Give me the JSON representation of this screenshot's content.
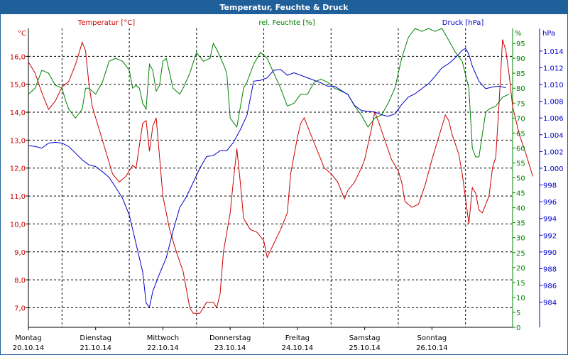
{
  "window": {
    "title": "Temperatur, Feuchte & Druck"
  },
  "chart_data": {
    "type": "line",
    "title": "Temperatur, Feuchte & Druck",
    "x_labels": [
      {
        "day": "Montag",
        "date": "20.10.14"
      },
      {
        "day": "Dienstag",
        "date": "21.10.14"
      },
      {
        "day": "Mittwoch",
        "date": "22.10.14"
      },
      {
        "day": "Donnerstag",
        "date": "23.10.14"
      },
      {
        "day": "Freitag",
        "date": "24.10.14"
      },
      {
        "day": "Samstag",
        "date": "25.10.14"
      },
      {
        "day": "Sonntag",
        "date": "26.10.14"
      }
    ],
    "xlim": [
      0,
      7.2
    ],
    "grid": true,
    "axes": {
      "temperature": {
        "label": "Temperatur [°C]",
        "unit": "°C",
        "color": "#cc0000",
        "ylim": [
          6.3,
          17.0
        ],
        "ticks": [
          "16,0",
          "15,0",
          "14,0",
          "13,0",
          "12,0",
          "11,0",
          "10,0",
          "9,0",
          "8,0",
          "7,0"
        ],
        "tick_values": [
          16,
          15,
          14,
          13,
          12,
          11,
          10,
          9,
          8,
          7
        ]
      },
      "humidity": {
        "label": "rel. Feuchte [%]",
        "unit": "%",
        "color": "#008000",
        "ylim": [
          0,
          100
        ],
        "ticks": [
          "95",
          "90",
          "85",
          "80",
          "75",
          "70",
          "65",
          "60",
          "55",
          "50",
          "45",
          "40",
          "35",
          "30",
          "25",
          "20",
          "15",
          "10",
          "5",
          "0"
        ],
        "tick_values": [
          95,
          90,
          85,
          80,
          75,
          70,
          65,
          60,
          55,
          50,
          45,
          40,
          35,
          30,
          25,
          20,
          15,
          10,
          5,
          0
        ]
      },
      "pressure": {
        "label": "Druck [hPa]",
        "unit": "hPa",
        "color": "#0000cc",
        "ylim": [
          981.0,
          1016.7
        ],
        "ticks": [
          "1.014",
          "1.012",
          "1.010",
          "1.008",
          "1.006",
          "1.004",
          "1.002",
          "1.000",
          "998",
          "996",
          "994",
          "992",
          "990",
          "988",
          "986",
          "984"
        ],
        "tick_values": [
          1014,
          1012,
          1010,
          1008,
          1006,
          1004,
          1002,
          1000,
          998,
          996,
          994,
          992,
          990,
          988,
          986,
          984
        ]
      }
    },
    "series": [
      {
        "name": "Temperatur [°C]",
        "axis": "temperature",
        "color": "#cc0000",
        "points": [
          [
            0,
            15.8
          ],
          [
            0.1,
            15.4
          ],
          [
            0.2,
            14.7
          ],
          [
            0.3,
            14.1
          ],
          [
            0.4,
            14.4
          ],
          [
            0.5,
            14.9
          ],
          [
            0.6,
            15.1
          ],
          [
            0.7,
            15.7
          ],
          [
            0.8,
            16.5
          ],
          [
            0.85,
            16.2
          ],
          [
            0.9,
            15.0
          ],
          [
            0.95,
            14.2
          ],
          [
            1.0,
            13.8
          ],
          [
            1.1,
            13.0
          ],
          [
            1.2,
            12.2
          ],
          [
            1.25,
            11.8
          ],
          [
            1.35,
            11.5
          ],
          [
            1.45,
            11.7
          ],
          [
            1.55,
            12.1
          ],
          [
            1.6,
            12.0
          ],
          [
            1.7,
            13.6
          ],
          [
            1.75,
            13.7
          ],
          [
            1.8,
            12.6
          ],
          [
            1.85,
            13.5
          ],
          [
            1.9,
            13.8
          ],
          [
            1.95,
            12.4
          ],
          [
            2.0,
            11.0
          ],
          [
            2.1,
            9.8
          ],
          [
            2.2,
            9.0
          ],
          [
            2.3,
            8.3
          ],
          [
            2.4,
            7.0
          ],
          [
            2.45,
            6.8
          ],
          [
            2.55,
            6.8
          ],
          [
            2.65,
            7.2
          ],
          [
            2.75,
            7.2
          ],
          [
            2.8,
            7.0
          ],
          [
            2.85,
            7.5
          ],
          [
            2.9,
            9.0
          ],
          [
            3.0,
            10.4
          ],
          [
            3.05,
            11.6
          ],
          [
            3.1,
            12.7
          ],
          [
            3.15,
            11.5
          ],
          [
            3.2,
            10.2
          ],
          [
            3.3,
            9.8
          ],
          [
            3.4,
            9.7
          ],
          [
            3.5,
            9.4
          ],
          [
            3.55,
            8.8
          ],
          [
            3.65,
            9.3
          ],
          [
            3.75,
            9.8
          ],
          [
            3.85,
            10.4
          ],
          [
            3.9,
            11.8
          ],
          [
            4.0,
            13.1
          ],
          [
            4.05,
            13.6
          ],
          [
            4.1,
            13.8
          ],
          [
            4.2,
            13.2
          ],
          [
            4.3,
            12.6
          ],
          [
            4.4,
            12.0
          ],
          [
            4.5,
            11.8
          ],
          [
            4.6,
            11.5
          ],
          [
            4.7,
            10.9
          ],
          [
            4.75,
            11.2
          ],
          [
            4.85,
            11.5
          ],
          [
            4.95,
            12.0
          ],
          [
            5.0,
            12.3
          ],
          [
            5.1,
            13.4
          ],
          [
            5.15,
            14.0
          ],
          [
            5.2,
            13.7
          ],
          [
            5.3,
            13.0
          ],
          [
            5.4,
            12.3
          ],
          [
            5.5,
            11.9
          ],
          [
            5.55,
            11.5
          ],
          [
            5.6,
            10.8
          ],
          [
            5.7,
            10.6
          ],
          [
            5.8,
            10.7
          ],
          [
            5.9,
            11.4
          ],
          [
            6.0,
            12.3
          ],
          [
            6.1,
            13.1
          ],
          [
            6.2,
            13.9
          ],
          [
            6.25,
            13.7
          ],
          [
            6.3,
            13.2
          ],
          [
            6.4,
            12.5
          ],
          [
            6.45,
            11.8
          ],
          [
            6.5,
            10.9
          ],
          [
            6.55,
            10.0
          ],
          [
            6.6,
            11.3
          ],
          [
            6.65,
            11.1
          ],
          [
            6.7,
            10.5
          ],
          [
            6.75,
            10.4
          ],
          [
            6.85,
            11.0
          ],
          [
            6.9,
            12.0
          ],
          [
            6.95,
            12.4
          ],
          [
            7.0,
            14.4
          ],
          [
            7.05,
            16.6
          ],
          [
            7.1,
            16.2
          ],
          [
            7.15,
            15.3
          ],
          [
            7.2,
            14.2
          ],
          [
            7.3,
            13.2
          ],
          [
            7.4,
            12.5
          ],
          [
            7.5,
            11.7
          ]
        ]
      },
      {
        "name": "rel. Feuchte [%]",
        "axis": "humidity",
        "color": "#008000",
        "points": [
          [
            0,
            78
          ],
          [
            0.1,
            80
          ],
          [
            0.2,
            86
          ],
          [
            0.3,
            85
          ],
          [
            0.4,
            81
          ],
          [
            0.5,
            80
          ],
          [
            0.55,
            76
          ],
          [
            0.6,
            73
          ],
          [
            0.7,
            70
          ],
          [
            0.8,
            73
          ],
          [
            0.85,
            80
          ],
          [
            0.9,
            80
          ],
          [
            1.0,
            78
          ],
          [
            1.1,
            82
          ],
          [
            1.2,
            89
          ],
          [
            1.3,
            90
          ],
          [
            1.4,
            89
          ],
          [
            1.5,
            86
          ],
          [
            1.55,
            80
          ],
          [
            1.6,
            81
          ],
          [
            1.65,
            80
          ],
          [
            1.7,
            75
          ],
          [
            1.75,
            73
          ],
          [
            1.8,
            88
          ],
          [
            1.85,
            86
          ],
          [
            1.9,
            79
          ],
          [
            1.95,
            81
          ],
          [
            2.0,
            89
          ],
          [
            2.05,
            90
          ],
          [
            2.15,
            80
          ],
          [
            2.25,
            78
          ],
          [
            2.3,
            80
          ],
          [
            2.4,
            85
          ],
          [
            2.5,
            92
          ],
          [
            2.6,
            89
          ],
          [
            2.7,
            90
          ],
          [
            2.75,
            95
          ],
          [
            2.8,
            93
          ],
          [
            2.9,
            88
          ],
          [
            2.95,
            85
          ],
          [
            3.0,
            70
          ],
          [
            3.1,
            67
          ],
          [
            3.2,
            80
          ],
          [
            3.25,
            82
          ],
          [
            3.35,
            88
          ],
          [
            3.45,
            92
          ],
          [
            3.55,
            90
          ],
          [
            3.65,
            85
          ],
          [
            3.75,
            80
          ],
          [
            3.85,
            74
          ],
          [
            3.95,
            75
          ],
          [
            4.05,
            78
          ],
          [
            4.15,
            78
          ],
          [
            4.25,
            82
          ],
          [
            4.35,
            83
          ],
          [
            4.45,
            82
          ],
          [
            4.55,
            80
          ],
          [
            4.65,
            79
          ],
          [
            4.75,
            78
          ],
          [
            4.85,
            74
          ],
          [
            4.95,
            71
          ],
          [
            5.05,
            67
          ],
          [
            5.15,
            70
          ],
          [
            5.25,
            71
          ],
          [
            5.35,
            75
          ],
          [
            5.45,
            80
          ],
          [
            5.55,
            90
          ],
          [
            5.65,
            97
          ],
          [
            5.75,
            100
          ],
          [
            5.85,
            99
          ],
          [
            5.95,
            100
          ],
          [
            6.05,
            99
          ],
          [
            6.15,
            100
          ],
          [
            6.25,
            96
          ],
          [
            6.35,
            92
          ],
          [
            6.45,
            89
          ],
          [
            6.55,
            80
          ],
          [
            6.6,
            60
          ],
          [
            6.65,
            57
          ],
          [
            6.7,
            57
          ],
          [
            6.8,
            72
          ],
          [
            6.85,
            73
          ],
          [
            6.95,
            74
          ],
          [
            7.05,
            77
          ],
          [
            7.15,
            78
          ]
        ]
      },
      {
        "name": "Druck [hPa]",
        "axis": "pressure",
        "color": "#0000cc",
        "points": [
          [
            0,
            1002.7
          ],
          [
            0.1,
            1002.6
          ],
          [
            0.2,
            1002.4
          ],
          [
            0.3,
            1003.0
          ],
          [
            0.4,
            1003.1
          ],
          [
            0.5,
            1003.0
          ],
          [
            0.6,
            1002.6
          ],
          [
            0.7,
            1001.8
          ],
          [
            0.8,
            1001.0
          ],
          [
            0.9,
            1000.4
          ],
          [
            1.0,
            1000.2
          ],
          [
            1.1,
            999.6
          ],
          [
            1.2,
            998.9
          ],
          [
            1.3,
            997.7
          ],
          [
            1.4,
            996.4
          ],
          [
            1.5,
            994.4
          ],
          [
            1.6,
            991.0
          ],
          [
            1.7,
            987.6
          ],
          [
            1.75,
            983.9
          ],
          [
            1.8,
            983.4
          ],
          [
            1.85,
            985.3
          ],
          [
            1.95,
            987.4
          ],
          [
            2.05,
            989.3
          ],
          [
            2.15,
            992.5
          ],
          [
            2.25,
            995.3
          ],
          [
            2.35,
            996.6
          ],
          [
            2.45,
            998.3
          ],
          [
            2.55,
            1000.0
          ],
          [
            2.65,
            1001.4
          ],
          [
            2.75,
            1001.5
          ],
          [
            2.85,
            1002.1
          ],
          [
            2.95,
            1002.1
          ],
          [
            3.05,
            1003.1
          ],
          [
            3.15,
            1004.6
          ],
          [
            3.25,
            1006.3
          ],
          [
            3.35,
            1010.4
          ],
          [
            3.45,
            1010.5
          ],
          [
            3.55,
            1010.8
          ],
          [
            3.65,
            1011.7
          ],
          [
            3.75,
            1011.8
          ],
          [
            3.85,
            1011.1
          ],
          [
            3.95,
            1011.4
          ],
          [
            4.05,
            1011.1
          ],
          [
            4.15,
            1010.8
          ],
          [
            4.25,
            1010.5
          ],
          [
            4.35,
            1010.2
          ],
          [
            4.45,
            1009.8
          ],
          [
            4.55,
            1009.8
          ],
          [
            4.65,
            1009.3
          ],
          [
            4.75,
            1008.8
          ],
          [
            4.85,
            1007.5
          ],
          [
            4.95,
            1006.9
          ],
          [
            5.05,
            1006.8
          ],
          [
            5.15,
            1006.7
          ],
          [
            5.25,
            1006.4
          ],
          [
            5.35,
            1006.2
          ],
          [
            5.45,
            1006.5
          ],
          [
            5.55,
            1007.6
          ],
          [
            5.65,
            1008.5
          ],
          [
            5.75,
            1008.9
          ],
          [
            5.85,
            1009.5
          ],
          [
            5.95,
            1010.1
          ],
          [
            6.05,
            1011.0
          ],
          [
            6.15,
            1012.0
          ],
          [
            6.25,
            1012.5
          ],
          [
            6.35,
            1013.2
          ],
          [
            6.45,
            1014.1
          ],
          [
            6.5,
            1014.3
          ],
          [
            6.55,
            1013.6
          ],
          [
            6.6,
            1012.2
          ],
          [
            6.7,
            1010.4
          ],
          [
            6.8,
            1009.5
          ],
          [
            6.9,
            1009.7
          ],
          [
            7.0,
            1009.8
          ],
          [
            7.1,
            1009.6
          ]
        ]
      }
    ]
  }
}
